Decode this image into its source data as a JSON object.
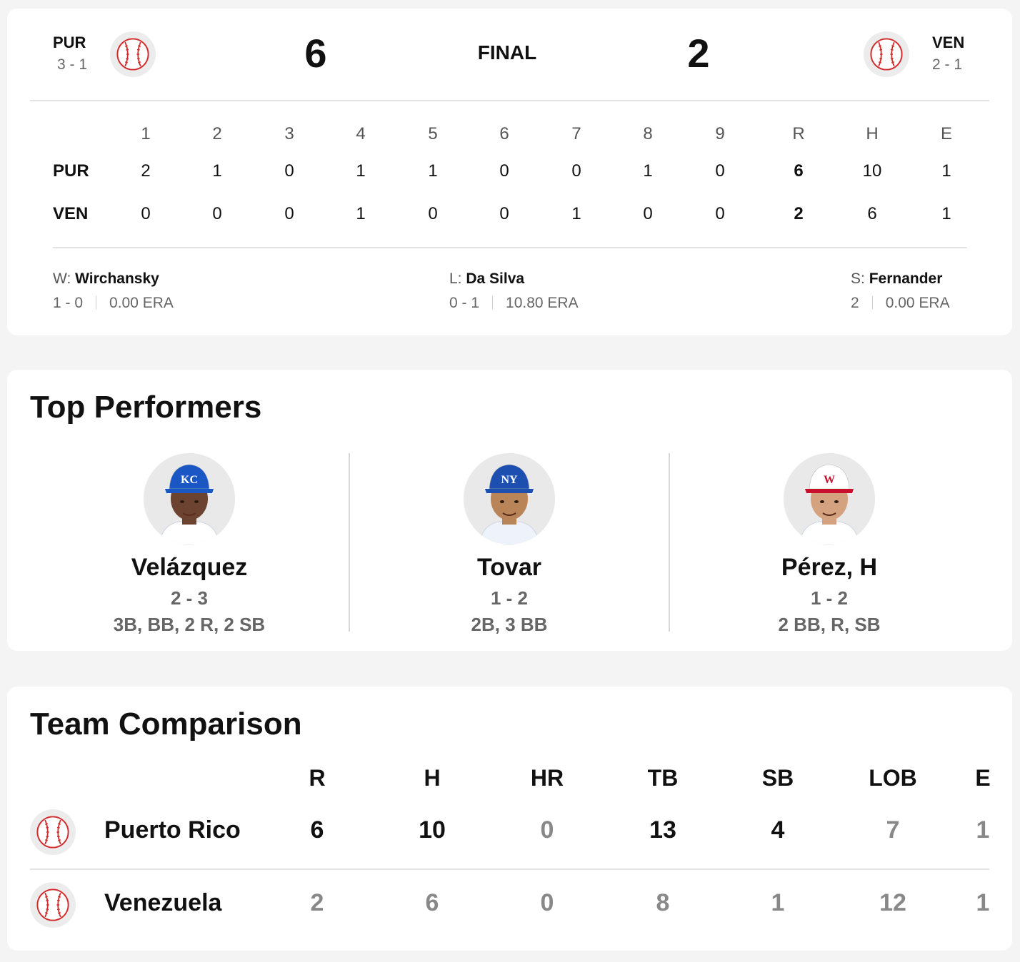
{
  "game": {
    "status": "FINAL",
    "away": {
      "abbr": "PUR",
      "record": "3 - 1",
      "score": "6",
      "logo": "baseball-icon"
    },
    "home": {
      "abbr": "VEN",
      "record": "2 - 1",
      "score": "2",
      "logo": "baseball-icon"
    }
  },
  "linescore": {
    "headers": [
      "1",
      "2",
      "3",
      "4",
      "5",
      "6",
      "7",
      "8",
      "9",
      "R",
      "H",
      "E"
    ],
    "rows": [
      {
        "team": "PUR",
        "cells": [
          "2",
          "1",
          "0",
          "1",
          "1",
          "0",
          "0",
          "1",
          "0",
          "6",
          "10",
          "1"
        ]
      },
      {
        "team": "VEN",
        "cells": [
          "0",
          "0",
          "0",
          "1",
          "0",
          "0",
          "1",
          "0",
          "0",
          "2",
          "6",
          "1"
        ]
      }
    ]
  },
  "pitchers": [
    {
      "label": "W:",
      "name": "Wirchansky",
      "record": "1 - 0",
      "era": "0.00 ERA"
    },
    {
      "label": "L:",
      "name": "Da Silva",
      "record": "0 - 1",
      "era": "10.80 ERA"
    },
    {
      "label": "S:",
      "name": "Fernander",
      "record": "2",
      "era": "0.00 ERA"
    }
  ],
  "top_performers": {
    "title": "Top Performers",
    "players": [
      {
        "name": "Velázquez",
        "line": "2 - 3",
        "details": "3B, BB, 2 R, 2 SB",
        "cap_color": "#1a56c4",
        "cap_text": "KC",
        "jersey": "#ffffff",
        "skin": "#6b4330"
      },
      {
        "name": "Tovar",
        "line": "1 - 2",
        "details": "2B, 3 BB",
        "cap_color": "#1d4fb0",
        "cap_text": "NY",
        "jersey": "#eef2fa",
        "skin": "#b98458"
      },
      {
        "name": "Pérez, H",
        "line": "1 - 2",
        "details": "2 BB, R, SB",
        "cap_color": "#ffffff",
        "cap_text": "W",
        "jersey": "#ffffff",
        "skin": "#d4a27e"
      }
    ]
  },
  "team_comparison": {
    "title": "Team Comparison",
    "headers": [
      "R",
      "H",
      "HR",
      "TB",
      "SB",
      "LOB",
      "E"
    ],
    "teams": [
      {
        "name": "Puerto Rico",
        "values": [
          "6",
          "10",
          "0",
          "13",
          "4",
          "7",
          "1"
        ],
        "bold": [
          true,
          true,
          false,
          true,
          true,
          false,
          false
        ]
      },
      {
        "name": "Venezuela",
        "values": [
          "2",
          "6",
          "0",
          "8",
          "1",
          "12",
          "1"
        ],
        "bold": [
          false,
          false,
          false,
          false,
          false,
          false,
          false
        ]
      }
    ]
  },
  "colors": {
    "accent_red": "#d22b2b",
    "muted": "#666666"
  }
}
